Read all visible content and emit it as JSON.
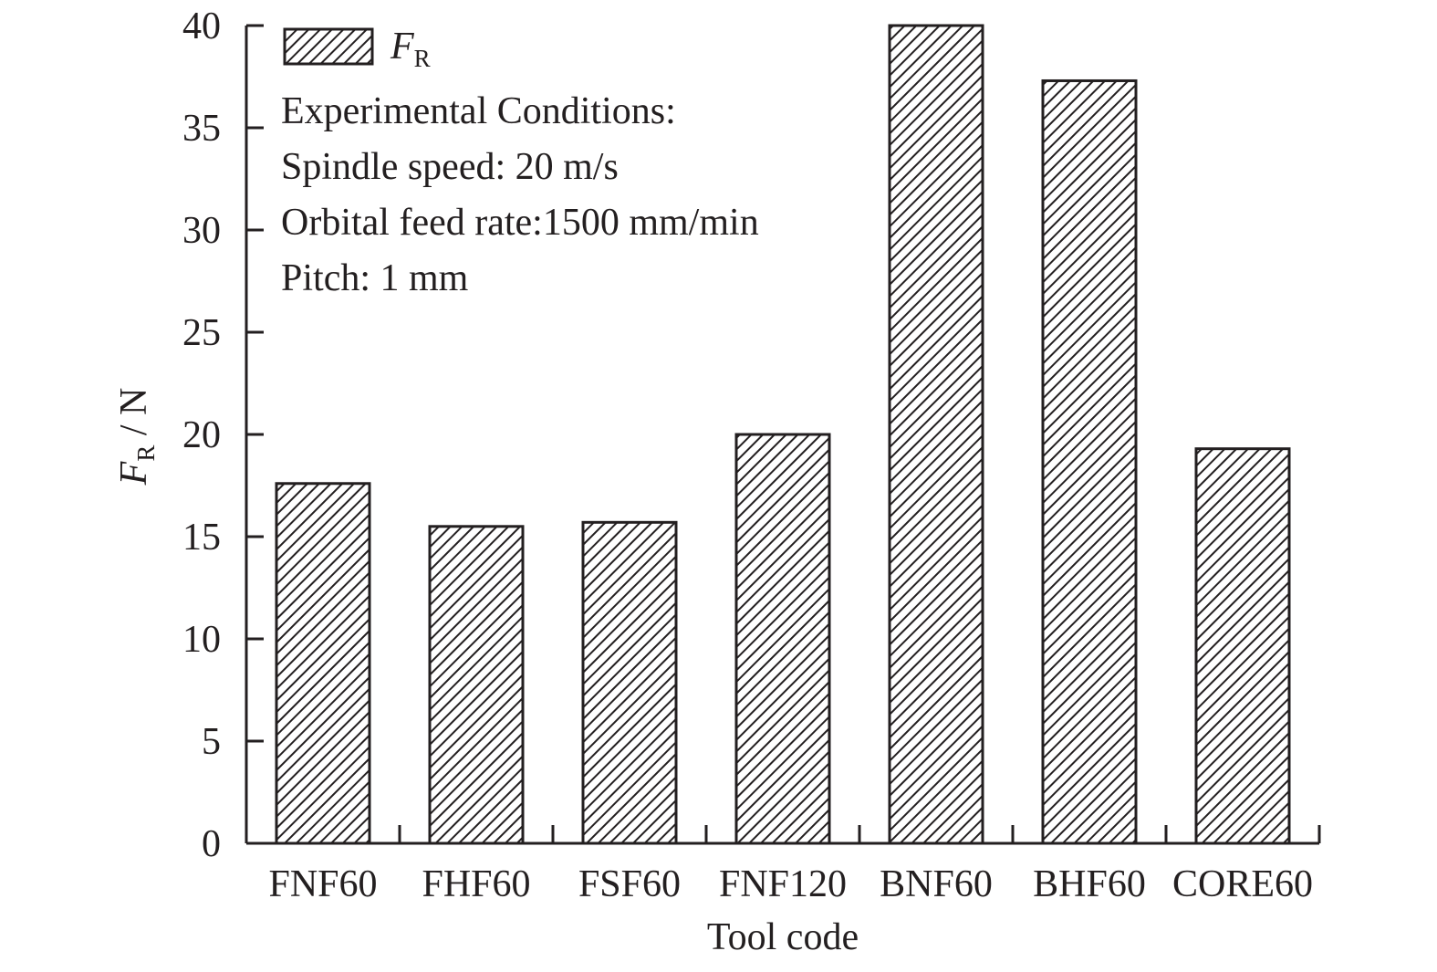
{
  "chart_data": {
    "type": "bar",
    "categories": [
      "FNF60",
      "FHF60",
      "FSF60",
      "FNF120",
      "BNF60",
      "BHF60",
      "CORE60"
    ],
    "series": [
      {
        "name": "F_R",
        "values": [
          17.6,
          15.5,
          15.7,
          20.0,
          40.0,
          37.3,
          19.3
        ]
      }
    ],
    "legend": {
      "symbol": "F",
      "subscript": "R",
      "placement": "top-left"
    },
    "ylabel": {
      "symbol": "F",
      "subscript": "R",
      "unit": " / N"
    },
    "xlabel": "Tool code",
    "ylim": [
      0,
      40
    ],
    "yticks": [
      0,
      5,
      10,
      15,
      20,
      25,
      30,
      35,
      40
    ],
    "grid": false,
    "bar_fill": "diagonal-hatch",
    "colors": {
      "ink": "#231f20",
      "background": "#ffffff"
    },
    "annotations": [
      "Experimental Conditions:",
      "Spindle speed: 20 m/s",
      "Orbital feed rate:1500 mm/min",
      "Pitch: 1 mm"
    ]
  }
}
